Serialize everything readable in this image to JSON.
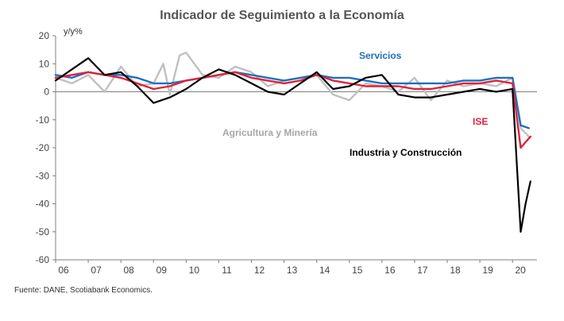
{
  "chart_data": {
    "type": "line",
    "title": "Indicador de Seguimiento a la Economía",
    "ylabel": "y/y%",
    "xlabel": "",
    "source": "Fuente: DANE, Scotiabank Economics.",
    "ylim": [
      -60,
      20
    ],
    "y_ticks": [
      20,
      10,
      0,
      -10,
      -20,
      -30,
      -40,
      -50,
      -60
    ],
    "x_range": [
      2006.0,
      2020.75
    ],
    "x_ticks": [
      {
        "label": "06",
        "value": 2006
      },
      {
        "label": "07",
        "value": 2007
      },
      {
        "label": "08",
        "value": 2008
      },
      {
        "label": "09",
        "value": 2009
      },
      {
        "label": "10",
        "value": 2010
      },
      {
        "label": "11",
        "value": 2011
      },
      {
        "label": "12",
        "value": 2012
      },
      {
        "label": "13",
        "value": 2013
      },
      {
        "label": "14",
        "value": 2014
      },
      {
        "label": "15",
        "value": 2015
      },
      {
        "label": "16",
        "value": 2016
      },
      {
        "label": "17",
        "value": 2017
      },
      {
        "label": "18",
        "value": 2018
      },
      {
        "label": "19",
        "value": 2019
      },
      {
        "label": "20",
        "value": 2020
      }
    ],
    "series": [
      {
        "name": "Agricultura y Minería",
        "label": "Agricultura y Minería",
        "color": "#c0c0c0",
        "x": [
          2006.0,
          2006.5,
          2007.0,
          2007.5,
          2008.0,
          2008.5,
          2009.0,
          2009.3,
          2009.5,
          2009.8,
          2010.0,
          2010.5,
          2011.0,
          2011.5,
          2012.0,
          2012.5,
          2013.0,
          2013.5,
          2014.0,
          2014.5,
          2015.0,
          2015.5,
          2016.0,
          2016.5,
          2017.0,
          2017.5,
          2018.0,
          2018.5,
          2019.0,
          2019.5,
          2020.0,
          2020.25,
          2020.5
        ],
        "y": [
          5,
          3,
          6,
          0,
          9,
          2,
          3,
          10,
          -1,
          13,
          14,
          6,
          5,
          9,
          7,
          2,
          4,
          5,
          6,
          -1,
          -3,
          3,
          2,
          0,
          5,
          -3,
          4,
          2,
          3,
          2,
          5,
          -13,
          -16
        ]
      },
      {
        "name": "Servicios",
        "label": "Servicios",
        "color": "#1f6fbf",
        "x": [
          2006.0,
          2006.5,
          2007.0,
          2007.5,
          2008.0,
          2008.5,
          2009.0,
          2009.5,
          2010.0,
          2010.5,
          2011.0,
          2011.5,
          2012.0,
          2012.5,
          2013.0,
          2013.5,
          2014.0,
          2014.5,
          2015.0,
          2015.5,
          2016.0,
          2016.5,
          2017.0,
          2017.5,
          2018.0,
          2018.5,
          2019.0,
          2019.5,
          2020.0,
          2020.25,
          2020.5
        ],
        "y": [
          6,
          5,
          7,
          6,
          6,
          5,
          3,
          3,
          4,
          5,
          6,
          7,
          6,
          5,
          4,
          5,
          6,
          5,
          5,
          4,
          3,
          3,
          3,
          3,
          3,
          4,
          4,
          5,
          5,
          -12,
          -13
        ]
      },
      {
        "name": "ISE",
        "label": "ISE",
        "color": "#e0233a",
        "x": [
          2006.0,
          2006.5,
          2007.0,
          2007.5,
          2008.0,
          2008.5,
          2009.0,
          2009.5,
          2010.0,
          2010.5,
          2011.0,
          2011.5,
          2012.0,
          2012.5,
          2013.0,
          2013.5,
          2014.0,
          2014.5,
          2015.0,
          2015.5,
          2016.0,
          2016.5,
          2017.0,
          2017.5,
          2018.0,
          2018.5,
          2019.0,
          2019.5,
          2020.0,
          2020.25,
          2020.4,
          2020.55
        ],
        "y": [
          5,
          6,
          7,
          6,
          5,
          3,
          1,
          2,
          4,
          5,
          6,
          7,
          5,
          4,
          3,
          4,
          6,
          4,
          3,
          2,
          2,
          2,
          1,
          1,
          2,
          3,
          3,
          4,
          3,
          -20,
          -18,
          -16
        ]
      },
      {
        "name": "Industria y Construcción",
        "label": "Industria y Construcción",
        "color": "#000000",
        "x": [
          2006.0,
          2006.5,
          2007.0,
          2007.5,
          2008.0,
          2008.5,
          2009.0,
          2009.5,
          2010.0,
          2010.5,
          2011.0,
          2011.5,
          2012.0,
          2012.5,
          2013.0,
          2013.5,
          2014.0,
          2014.5,
          2015.0,
          2015.5,
          2016.0,
          2016.5,
          2017.0,
          2017.5,
          2018.0,
          2018.5,
          2019.0,
          2019.5,
          2020.0,
          2020.25,
          2020.4,
          2020.55
        ],
        "y": [
          4,
          8,
          12,
          6,
          7,
          2,
          -4,
          -2,
          1,
          5,
          8,
          6,
          3,
          0,
          -1,
          3,
          7,
          1,
          2,
          5,
          6,
          -1,
          -2,
          -2,
          -1,
          0,
          1,
          0,
          1,
          -50,
          -40,
          -32
        ]
      }
    ],
    "annotations": [
      {
        "text": "Servicios",
        "series": "Servicios",
        "color": "#1f6fbf"
      },
      {
        "text": "Agricultura y Minería",
        "series": "Agricultura y Minería",
        "color": "#a6a6a6"
      },
      {
        "text": "ISE",
        "series": "ISE",
        "color": "#e0233a"
      },
      {
        "text": "Industria y Construcción",
        "series": "Industria y Construcción",
        "color": "#000000"
      }
    ]
  }
}
